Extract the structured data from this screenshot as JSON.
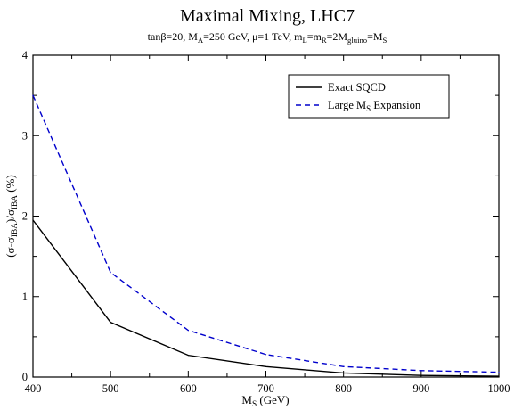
{
  "chart_data": {
    "type": "line",
    "title": "Maximal Mixing, LHC7",
    "subtitle": {
      "parts": [
        {
          "t": "tanβ=20, M"
        },
        {
          "t": "A",
          "sub": true
        },
        {
          "t": "=250 GeV, μ=1 TeV, m"
        },
        {
          "t": "L",
          "sub": true
        },
        {
          "t": "=m"
        },
        {
          "t": "R",
          "sub": true
        },
        {
          "t": "=2M"
        },
        {
          "t": "gluino",
          "sub": true
        },
        {
          "t": "=M"
        },
        {
          "t": "S",
          "sub": true
        }
      ]
    },
    "xlabel": {
      "parts": [
        {
          "t": "M"
        },
        {
          "t": "S",
          "sub": true
        },
        {
          "t": " (GeV)"
        }
      ]
    },
    "ylabel": {
      "parts": [
        {
          "t": "(σ-σ"
        },
        {
          "t": "IBA",
          "sub": true
        },
        {
          "t": ")/σ"
        },
        {
          "t": "IBA",
          "sub": true
        },
        {
          "t": " (%)"
        }
      ]
    },
    "xlim": [
      400,
      1000
    ],
    "ylim": [
      0,
      4
    ],
    "xticks": [
      "400",
      "500",
      "600",
      "700",
      "800",
      "900",
      "1000"
    ],
    "yticks": [
      "0",
      "1",
      "2",
      "3",
      "4"
    ],
    "grid": false,
    "legend_position": "top-right",
    "series": [
      {
        "name": {
          "parts": [
            {
              "t": "Exact SQCD"
            }
          ]
        },
        "color": "#000000",
        "style": "solid",
        "x": [
          400,
          500,
          600,
          700,
          800,
          900,
          1000
        ],
        "y": [
          1.95,
          0.68,
          0.27,
          0.13,
          0.05,
          0.02,
          0.01
        ]
      },
      {
        "name": {
          "parts": [
            {
              "t": "Large M"
            },
            {
              "t": "S",
              "sub": true
            },
            {
              "t": " Expansion"
            }
          ]
        },
        "color": "#0000cc",
        "style": "dashed",
        "x": [
          400,
          500,
          600,
          700,
          800,
          900,
          1000
        ],
        "y": [
          3.5,
          1.3,
          0.58,
          0.28,
          0.13,
          0.08,
          0.06
        ]
      }
    ]
  }
}
